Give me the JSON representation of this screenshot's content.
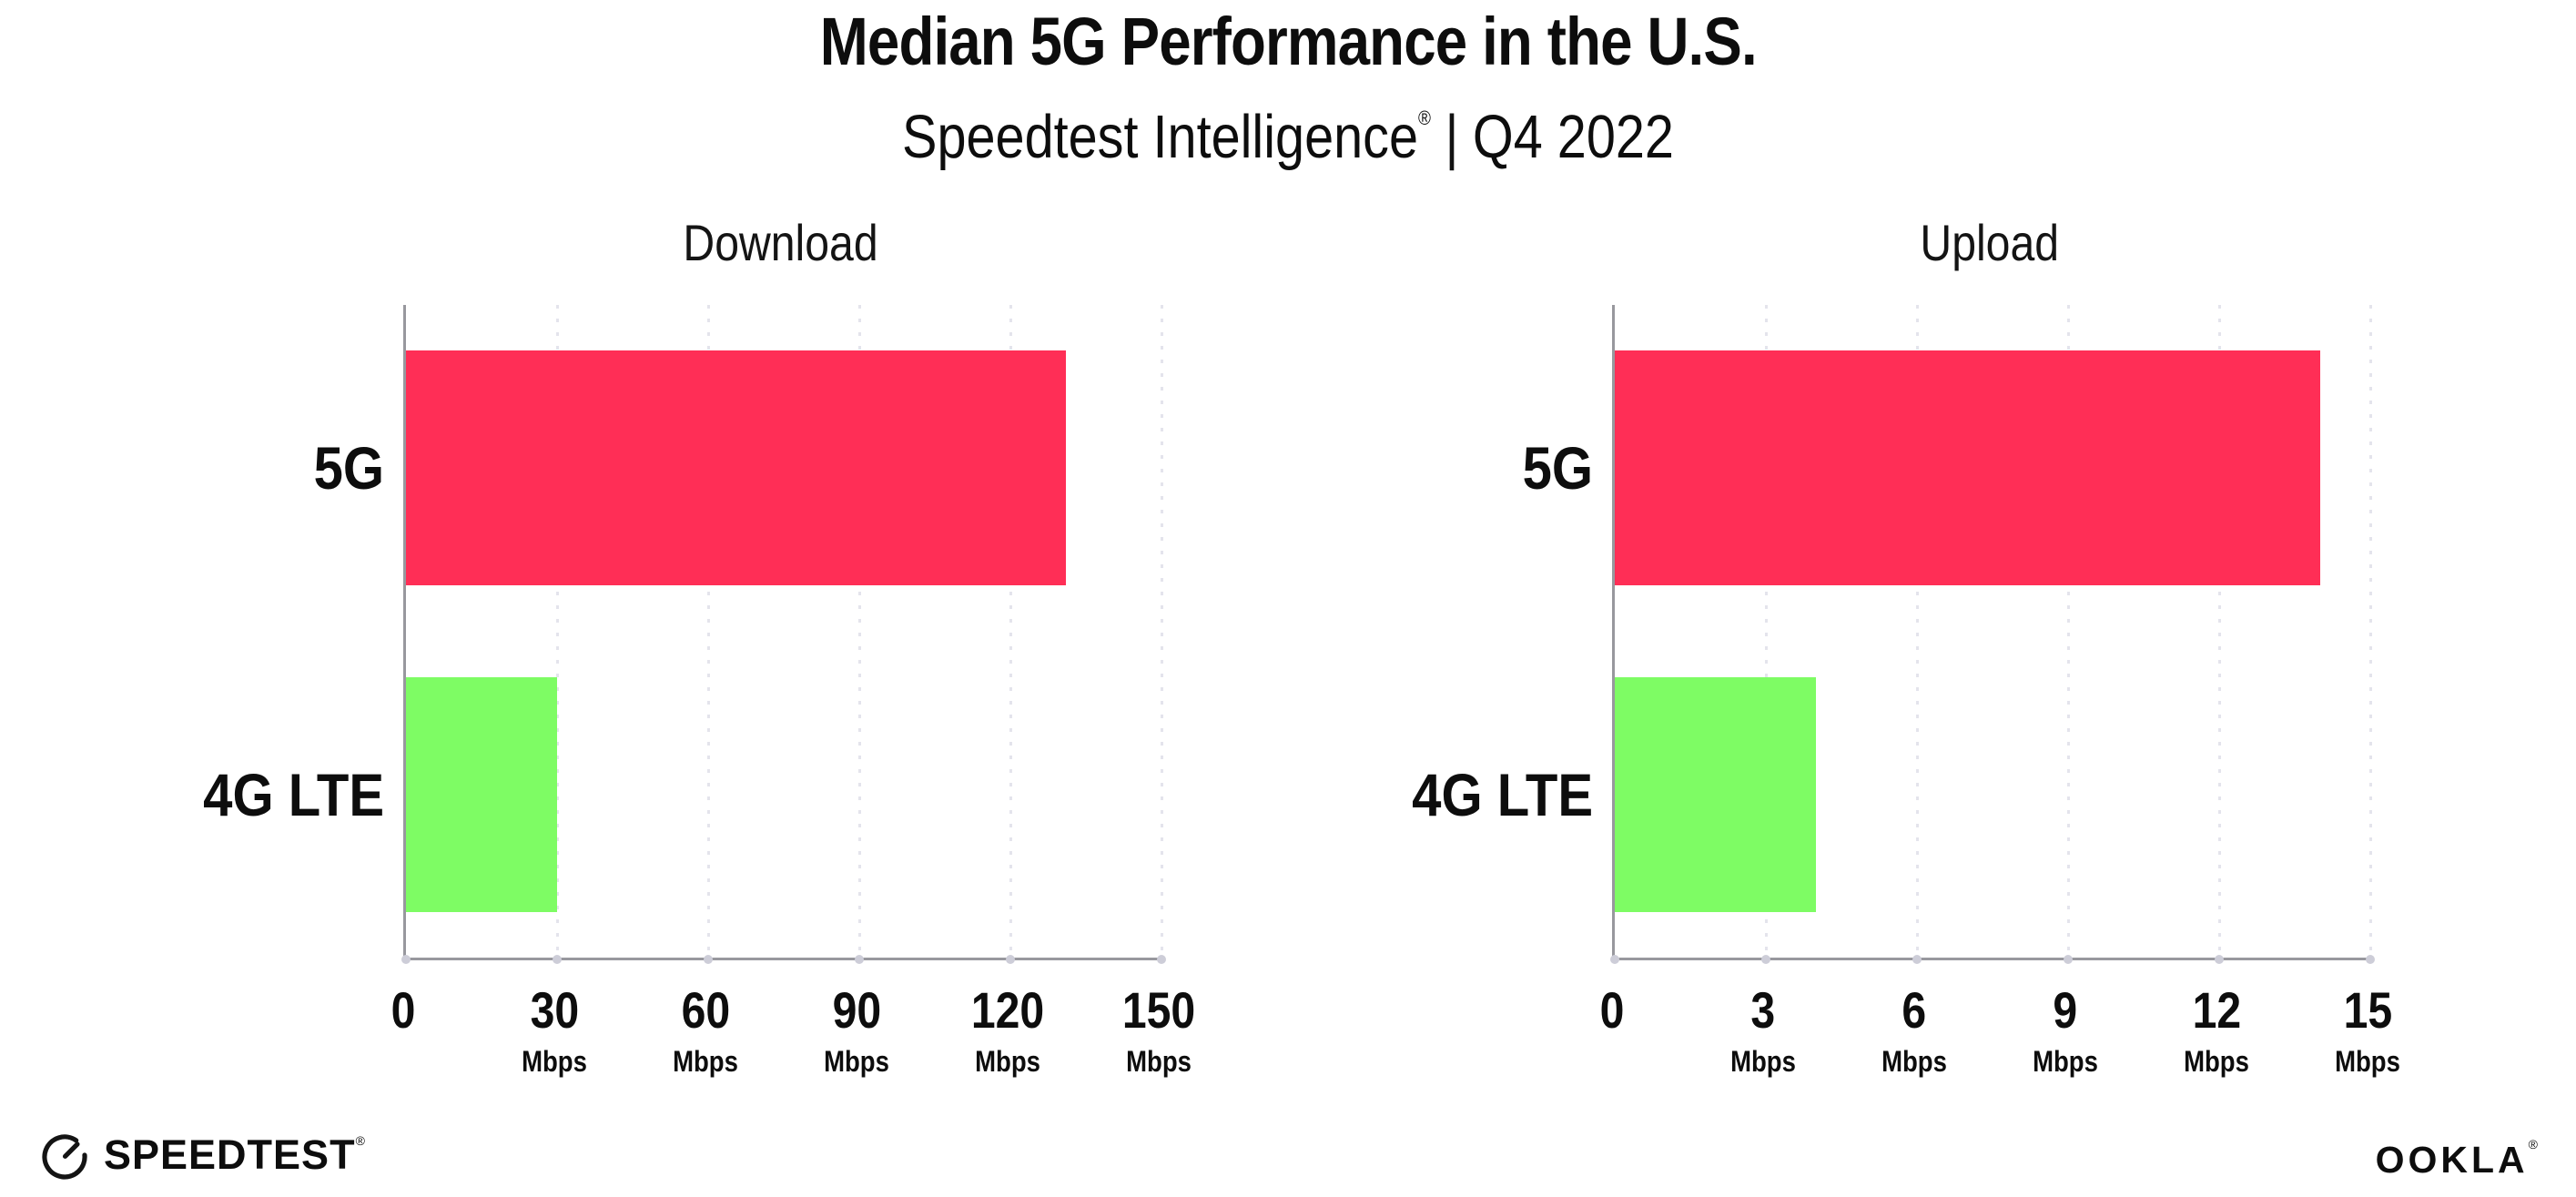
{
  "header": {
    "title": "Median 5G Performance in the U.S.",
    "subtitle": {
      "product": "Speedtest Intelligence",
      "registered_mark": "®",
      "separator": "|",
      "period": "Q4 2022"
    }
  },
  "chart_data": [
    {
      "type": "bar",
      "orientation": "horizontal",
      "title": "Download",
      "categories": [
        "5G",
        "4G LTE"
      ],
      "values": [
        131,
        30
      ],
      "value_unit": "Mbps",
      "xlim": [
        0,
        150
      ],
      "xticks": [
        0,
        30,
        60,
        90,
        120,
        150
      ],
      "xtick_unit_label": "Mbps",
      "bar_colors": [
        "#FF2E56",
        "#7EFC64"
      ],
      "grid": "vertical dotted gridline at each non-zero tick",
      "legend": "none"
    },
    {
      "type": "bar",
      "orientation": "horizontal",
      "title": "Upload",
      "categories": [
        "5G",
        "4G LTE"
      ],
      "values": [
        14,
        4
      ],
      "value_unit": "Mbps",
      "xlim": [
        0,
        15
      ],
      "xticks": [
        0,
        3,
        6,
        9,
        12,
        15
      ],
      "xtick_unit_label": "Mbps",
      "bar_colors": [
        "#FF2E56",
        "#7EFC64"
      ],
      "grid": "vertical dotted gridline at each non-zero tick",
      "legend": "none"
    }
  ],
  "footer": {
    "speedtest_label": "SPEEDTEST",
    "speedtest_mark": "®",
    "ookla_label": "OOKLA",
    "ookla_mark": "®"
  },
  "colors": {
    "background": "#FFFFFF",
    "bar_5g": "#FF2E56",
    "bar_4g_lte": "#7EFC64",
    "axis": "#98989E",
    "gridline": "#E4E4EC",
    "text": "#0D0D0D"
  }
}
